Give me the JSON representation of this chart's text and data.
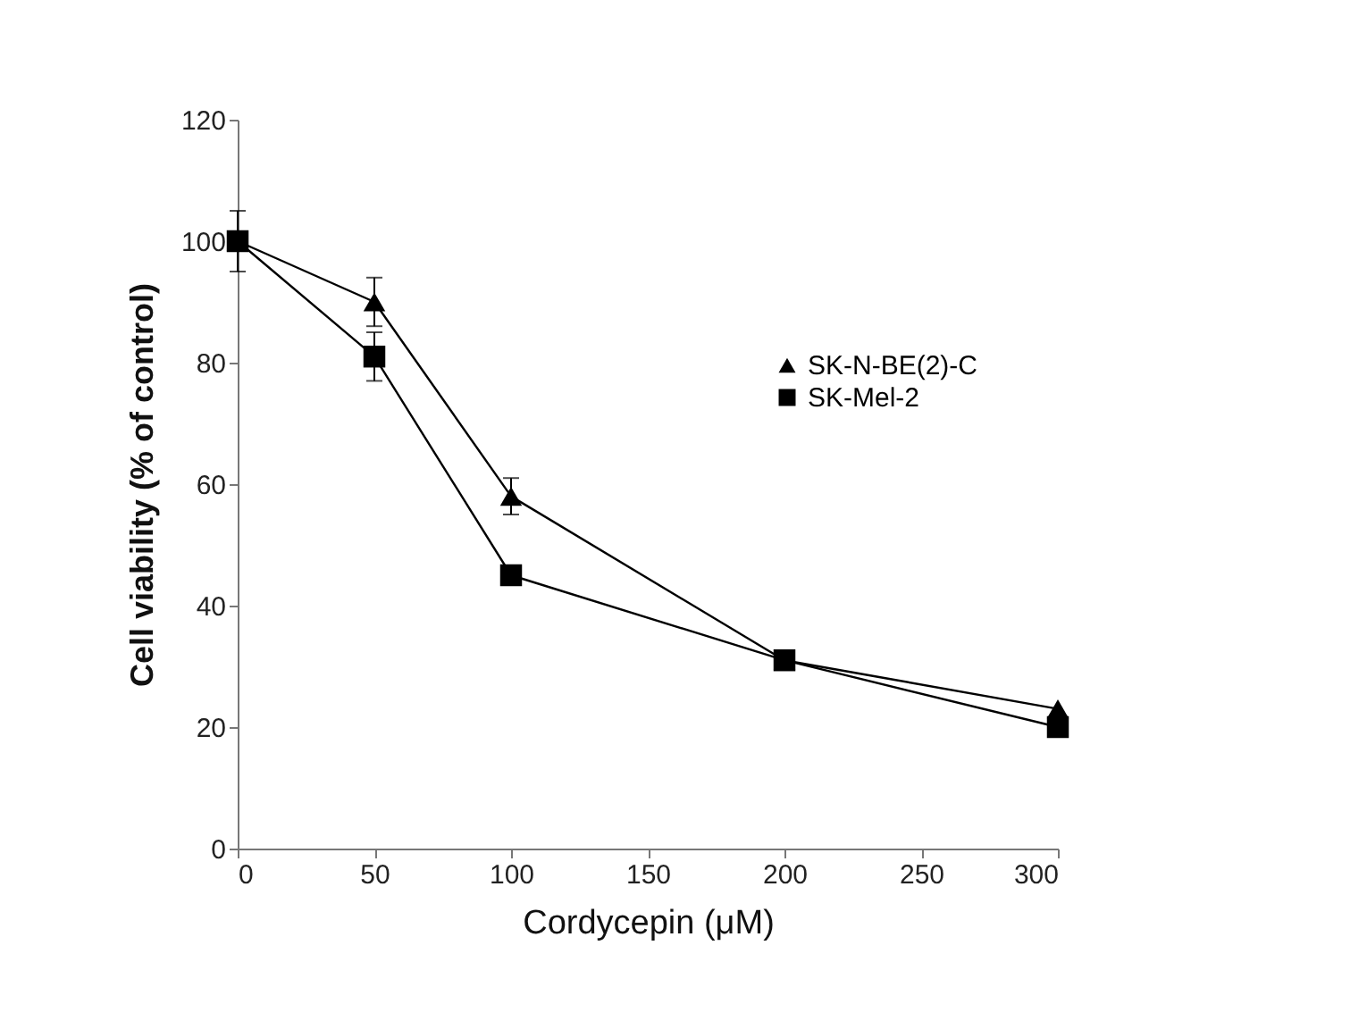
{
  "chart_data": {
    "type": "line",
    "xlabel": "Cordycepin (μM)",
    "ylabel": "Cell viability (% of control)",
    "x": [
      0,
      50,
      100,
      200,
      300
    ],
    "series": [
      {
        "name": "SK-N-BE(2)-C",
        "color": "#000000",
        "marker": "triangle",
        "values": [
          100,
          90,
          58,
          31,
          23
        ],
        "errors": [
          null,
          4,
          3,
          null,
          null
        ]
      },
      {
        "name": "SK-Mel-2",
        "color": "#000000",
        "marker": "square",
        "values": [
          100,
          81,
          45,
          31,
          20
        ],
        "errors": [
          5,
          4,
          null,
          null,
          null
        ]
      }
    ],
    "xlim": [
      0,
      300
    ],
    "xticks": [
      0,
      50,
      100,
      150,
      200,
      250,
      300
    ],
    "ylim": [
      0,
      120
    ],
    "yticks": [
      0,
      20,
      40,
      60,
      80,
      100,
      120
    ],
    "legend": "right",
    "grid": false
  }
}
